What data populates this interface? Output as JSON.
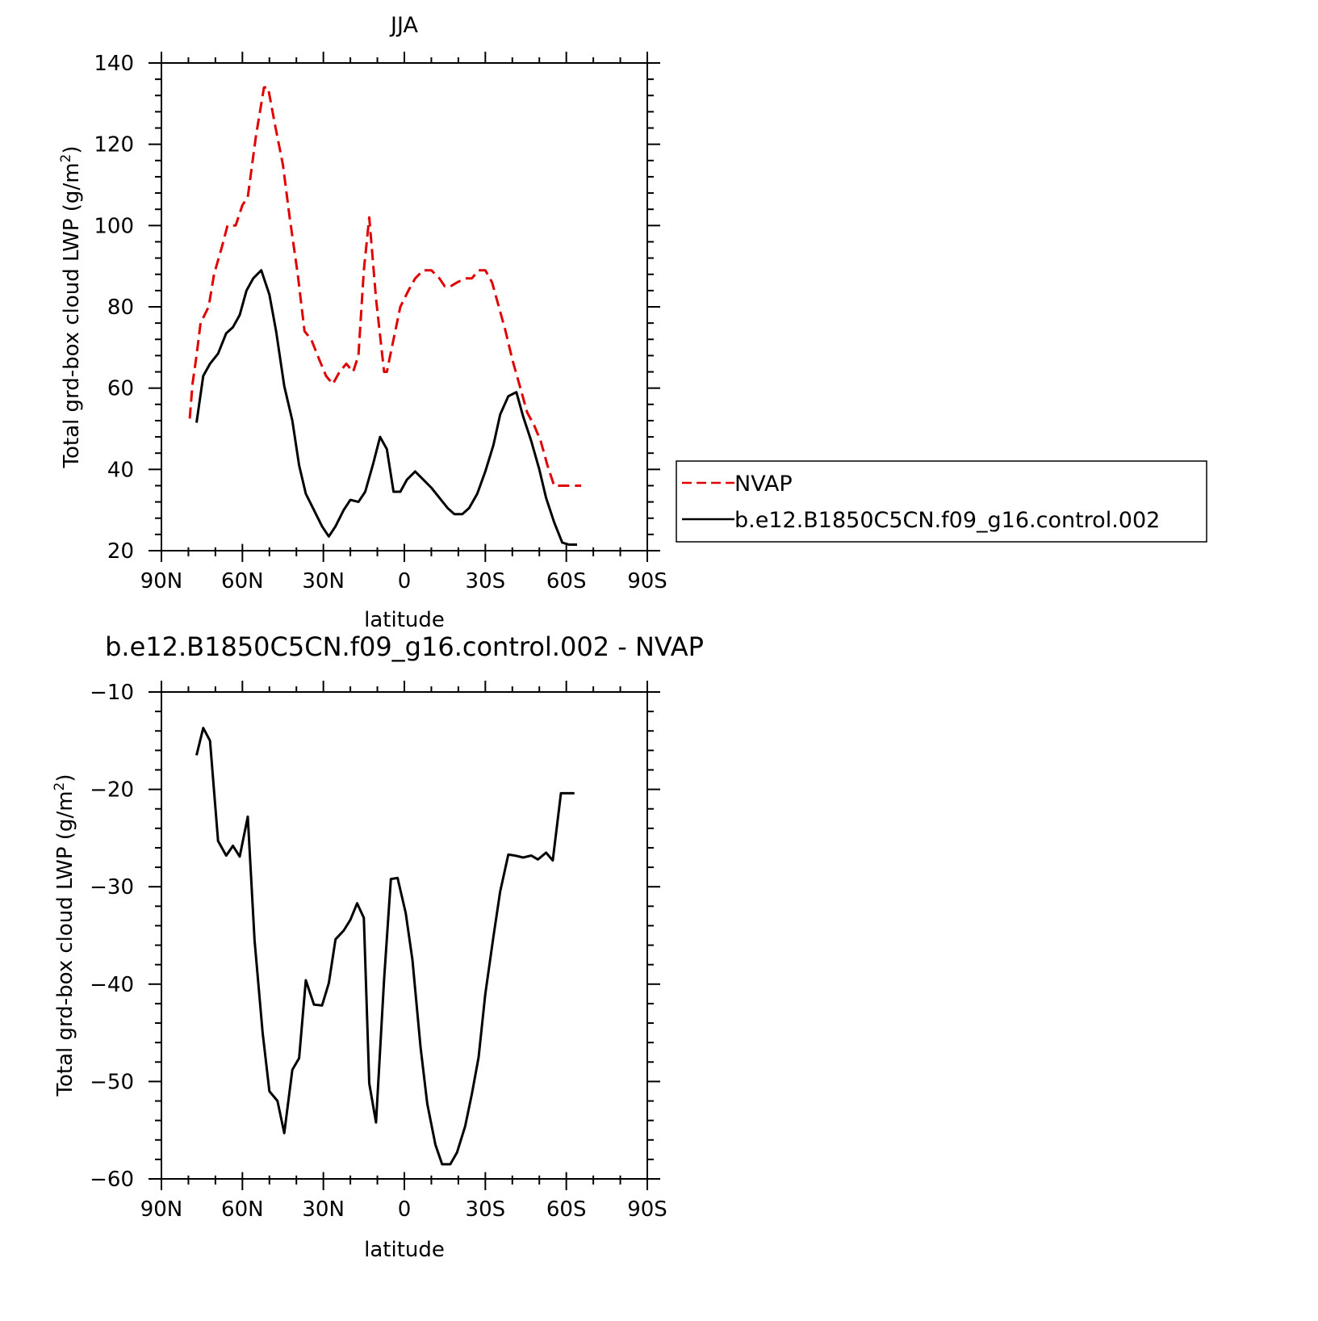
{
  "chart_data": [
    {
      "type": "line",
      "title": "JJA",
      "xlabel": "latitude",
      "ylabel": "Total grd-box cloud LWP (g/m²)",
      "ylabel_parts": [
        "Total grd-box cloud LWP (g/m",
        "2",
        ")"
      ],
      "xlim": [
        90,
        -90
      ],
      "ylim": [
        20,
        140
      ],
      "x_ticks": [
        90,
        60,
        30,
        0,
        -30,
        -60,
        -90
      ],
      "x_tick_labels": [
        "90N",
        "60N",
        "30N",
        "0",
        "30S",
        "60S",
        "90S"
      ],
      "y_ticks": [
        20,
        40,
        60,
        80,
        100,
        120,
        140
      ],
      "y_tick_labels": [
        "20",
        "40",
        "60",
        "80",
        "100",
        "120",
        "140"
      ],
      "grid": false,
      "legend_position": "right",
      "series": [
        {
          "name": "NVAP",
          "color": "#e00000",
          "style": "dashed",
          "x": [
            79.5,
            78.5,
            77,
            75.5,
            72.5,
            70.5,
            67.5,
            65.5,
            62.5,
            60,
            58,
            55,
            52,
            50.5,
            48,
            45,
            42.5,
            39.5,
            37,
            34.5,
            31.5,
            29,
            26.5,
            24,
            21.5,
            19,
            17,
            15,
            13,
            10.5,
            7.5,
            6.5,
            4,
            1.5,
            -1.5,
            -4,
            -7,
            -10,
            -13,
            -15,
            -17,
            -19.5,
            -22.5,
            -25,
            -27.5,
            -30,
            -32.5,
            -35,
            -37.5,
            -40,
            -43,
            -45.5,
            -48,
            -50.5,
            -53,
            -55.5,
            -58,
            -60.5,
            -63,
            -65.5
          ],
          "y": [
            52.5,
            61,
            68,
            76,
            80,
            88,
            95,
            100,
            100,
            105,
            107,
            122,
            134,
            134,
            125,
            115,
            102,
            88,
            74,
            72,
            67,
            63,
            61,
            64,
            66,
            64,
            68,
            89,
            102,
            82,
            64,
            64,
            72,
            80,
            84,
            87,
            89,
            89,
            87,
            85,
            85,
            86,
            87,
            87,
            89,
            89,
            86,
            80,
            74,
            67,
            60,
            54,
            51,
            47,
            41,
            36,
            36,
            36,
            36,
            36
          ]
        },
        {
          "name": "b.e12.B1850C5CN.f09_g16.control.002",
          "color": "#000000",
          "style": "solid",
          "x": [
            77,
            74.5,
            72,
            69,
            66,
            63.5,
            61,
            58.5,
            56,
            53,
            50,
            47.5,
            44.5,
            41.5,
            39,
            36.5,
            33.5,
            30.5,
            28,
            25.5,
            22.5,
            20,
            17,
            14.5,
            11.5,
            9,
            6.5,
            4,
            1.5,
            -1,
            -4,
            -7,
            -10,
            -13,
            -16,
            -18.5,
            -21.5,
            -24,
            -27,
            -30,
            -33,
            -35.5,
            -38.5,
            -41.5,
            -44,
            -47,
            -50,
            -52.5,
            -55.5,
            -58.5,
            -61,
            -64
          ],
          "y": [
            51.5,
            63,
            66,
            68.5,
            73.5,
            75,
            78,
            84,
            87,
            89,
            83,
            74,
            60.5,
            52,
            41,
            34,
            30,
            26,
            23.5,
            26,
            30,
            32.5,
            32,
            34.5,
            41.5,
            48,
            45,
            34.5,
            34.5,
            37.5,
            39.5,
            37.5,
            35.5,
            33,
            30.5,
            29,
            29,
            30.5,
            34,
            39.5,
            46,
            53.5,
            58,
            59,
            53,
            47,
            40,
            33,
            27,
            22,
            21.5,
            21.5
          ]
        }
      ]
    },
    {
      "type": "line",
      "title": "b.e12.B1850C5CN.f09_g16.control.002 - NVAP",
      "xlabel": "latitude",
      "ylabel": "Total grd-box cloud LWP (g/m²)",
      "ylabel_parts": [
        "Total grd-box cloud LWP (g/m",
        "2",
        ")"
      ],
      "xlim": [
        90,
        -90
      ],
      "ylim": [
        -60,
        -10
      ],
      "x_ticks": [
        90,
        60,
        30,
        0,
        -30,
        -60,
        -90
      ],
      "x_tick_labels": [
        "90N",
        "60N",
        "30N",
        "0",
        "30S",
        "60S",
        "90S"
      ],
      "y_ticks": [
        -60,
        -50,
        -40,
        -30,
        -20,
        -10
      ],
      "y_tick_labels": [
        "−60",
        "−50",
        "−40",
        "−30",
        "−20",
        "−10"
      ],
      "grid": false,
      "series": [
        {
          "color": "#000000",
          "style": "solid",
          "x": [
            77,
            74.5,
            72,
            69,
            66,
            63.5,
            61,
            58,
            55.5,
            52.5,
            50,
            47,
            44.5,
            41.5,
            39,
            36.5,
            33.5,
            30.5,
            28,
            25.5,
            22.5,
            20,
            17.5,
            15,
            13,
            10.5,
            7.5,
            5,
            2.5,
            -0.5,
            -3,
            -6,
            -8.5,
            -11.5,
            -14,
            -17,
            -19.5,
            -22.5,
            -25,
            -27.5,
            -30,
            -33,
            -35.5,
            -38.5,
            -41,
            -44,
            -47,
            -49.5,
            -52.5,
            -55,
            -58,
            -60.5,
            -63
          ],
          "y": [
            -16.5,
            -13.7,
            -15,
            -25.3,
            -26.8,
            -25.8,
            -26.9,
            -22.8,
            -35.5,
            -45,
            -51,
            -52,
            -55.3,
            -48.8,
            -47.6,
            -39.6,
            -42.1,
            -42.2,
            -39.9,
            -35.4,
            -34.5,
            -33.4,
            -31.7,
            -33.2,
            -50.2,
            -54.2,
            -39.5,
            -29.2,
            -29.1,
            -32.7,
            -37.5,
            -46.5,
            -52.3,
            -56.5,
            -58.5,
            -58.5,
            -57.3,
            -54.6,
            -51.3,
            -47.5,
            -41,
            -35.1,
            -30.5,
            -26.7,
            -26.8,
            -27,
            -26.8,
            -27.2,
            -26.5,
            -27.3,
            -20.4,
            -20.4,
            -20.4
          ]
        }
      ]
    }
  ]
}
